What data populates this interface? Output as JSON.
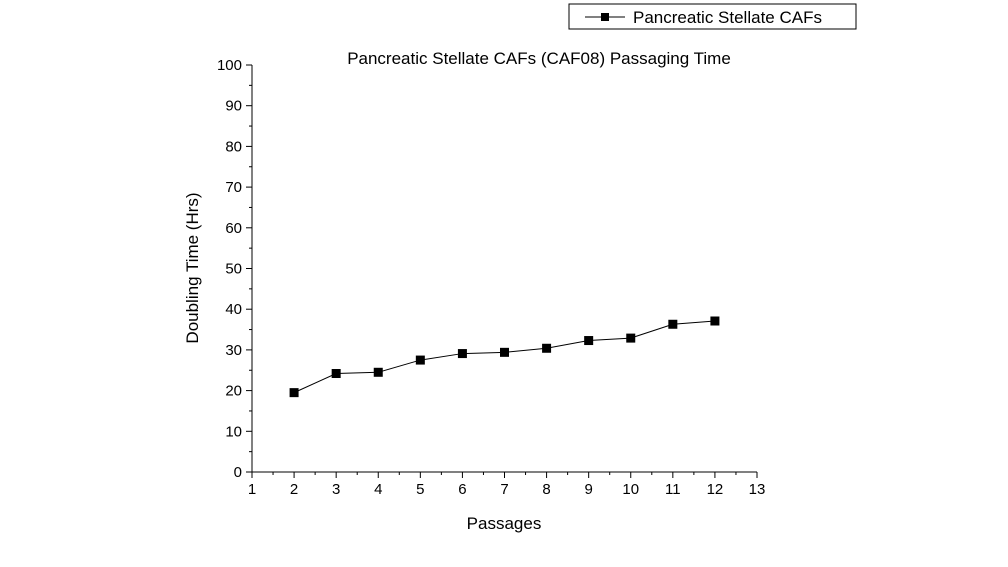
{
  "chart_data": {
    "type": "line",
    "title": "Pancreatic Stellate CAFs (CAF08) Passaging Time",
    "xlabel": "Passages",
    "ylabel": "Doubling Time (Hrs)",
    "xlim": [
      1,
      13
    ],
    "ylim": [
      0,
      100
    ],
    "xticks": [
      1,
      2,
      3,
      4,
      5,
      6,
      7,
      8,
      9,
      10,
      11,
      12,
      13
    ],
    "yticks": [
      0,
      10,
      20,
      30,
      40,
      50,
      60,
      70,
      80,
      90,
      100
    ],
    "grid": false,
    "legend_position": "top-right",
    "series": [
      {
        "name": "Pancreatic Stellate CAFs",
        "color": "#000000",
        "marker": "square",
        "x": [
          2,
          3,
          4,
          5,
          6,
          7,
          8,
          9,
          10,
          11,
          12
        ],
        "y": [
          19.5,
          24.2,
          24.5,
          27.5,
          29.1,
          29.4,
          30.4,
          32.3,
          32.9,
          36.3,
          37.1
        ]
      }
    ]
  }
}
